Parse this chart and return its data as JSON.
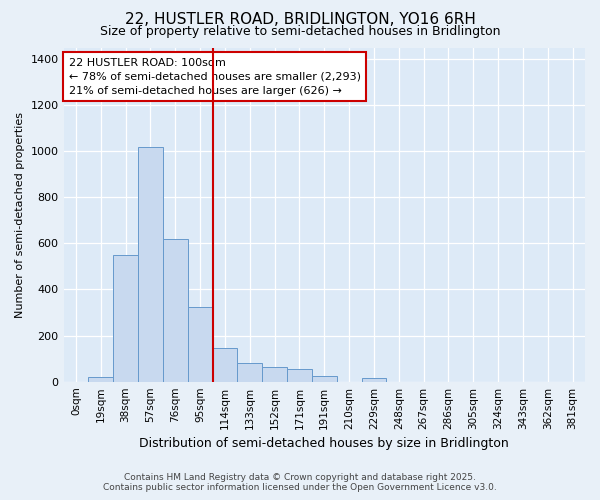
{
  "title": "22, HUSTLER ROAD, BRIDLINGTON, YO16 6RH",
  "subtitle": "Size of property relative to semi-detached houses in Bridlington",
  "xlabel": "Distribution of semi-detached houses by size in Bridlington",
  "ylabel": "Number of semi-detached properties",
  "annotation_line": "22 HUSTLER ROAD: 100sqm",
  "annotation_smaller": "← 78% of semi-detached houses are smaller (2,293)",
  "annotation_larger": "21% of semi-detached houses are larger (626) →",
  "footer1": "Contains HM Land Registry data © Crown copyright and database right 2025.",
  "footer2": "Contains public sector information licensed under the Open Government Licence v3.0.",
  "bar_labels": [
    "0sqm",
    "19sqm",
    "38sqm",
    "57sqm",
    "76sqm",
    "95sqm",
    "114sqm",
    "133sqm",
    "152sqm",
    "171sqm",
    "191sqm",
    "210sqm",
    "229sqm",
    "248sqm",
    "267sqm",
    "286sqm",
    "305sqm",
    "324sqm",
    "343sqm",
    "362sqm",
    "381sqm"
  ],
  "bar_values": [
    0,
    20,
    550,
    1020,
    620,
    325,
    145,
    80,
    65,
    55,
    25,
    0,
    15,
    0,
    0,
    0,
    0,
    0,
    0,
    0,
    0
  ],
  "bar_color": "#c8d9ef",
  "bar_edge_color": "#6699cc",
  "red_line_index": 5,
  "ylim": [
    0,
    1450
  ],
  "yticks": [
    0,
    200,
    400,
    600,
    800,
    1000,
    1200,
    1400
  ],
  "background_color": "#e8f0f8",
  "plot_background": "#ddeaf7",
  "grid_color": "#ffffff",
  "annotation_box_color": "#cc0000",
  "title_fontsize": 11,
  "subtitle_fontsize": 9,
  "title_fontweight": "normal"
}
